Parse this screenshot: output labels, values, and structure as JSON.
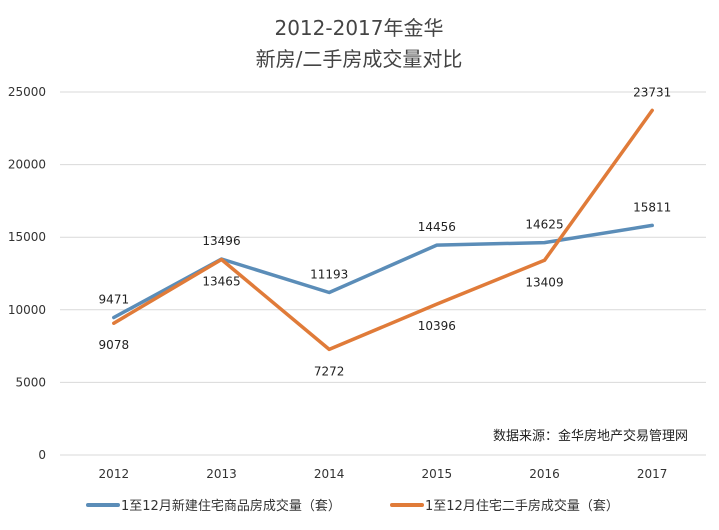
{
  "chart_data": {
    "type": "line",
    "title_lines": [
      "2012-2017年金华",
      "新房/二手房成交量对比"
    ],
    "categories": [
      "2012",
      "2013",
      "2014",
      "2015",
      "2016",
      "2017"
    ],
    "y_ticks": [
      "0",
      "5000",
      "10000",
      "15000",
      "20000",
      "25000"
    ],
    "ylim": [
      0,
      25000
    ],
    "grid": true,
    "legend_position": "bottom",
    "series": [
      {
        "name": "1至12月新建住宅商品房成交量（套）",
        "color": "#5B8DB8",
        "values": [
          9471,
          13496,
          11193,
          14456,
          14625,
          15811
        ],
        "labels": [
          "9471",
          "13496",
          "11193",
          "14456",
          "14625",
          "15811"
        ]
      },
      {
        "name": "1至12月住宅二手房成交量（套）",
        "color": "#E07B39",
        "values": [
          9078,
          13465,
          7272,
          10396,
          13409,
          23731
        ],
        "labels": [
          "9078",
          "13465",
          "7272",
          "10396",
          "13409",
          "23731"
        ]
      }
    ],
    "annotation": "数据来源：金华房地产交易管理网"
  }
}
